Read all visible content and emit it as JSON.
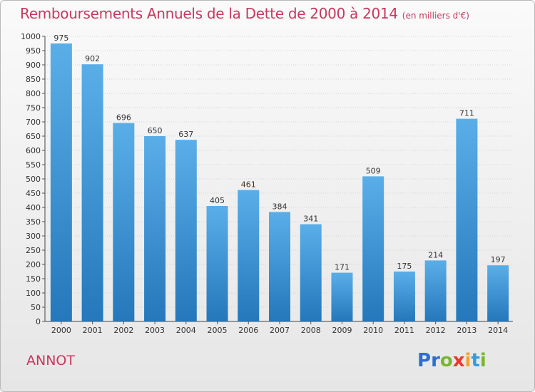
{
  "title": "Remboursements Annuels de la Dette de 2000 à 2014",
  "subtitle": "(en milliers d'€)",
  "commune": "ANNOT",
  "logo": {
    "letters": [
      "P",
      "r",
      "o",
      "x",
      "i",
      "t",
      "i"
    ],
    "colors": [
      "#2d6fd1",
      "#2d6fd1",
      "#7ab52f",
      "#e8392f",
      "#f3a325",
      "#3a9ad9",
      "#7ab52f"
    ]
  },
  "colors": {
    "bar_top": "#5aaee8",
    "bar_bottom": "#2478bb",
    "title": "#c8385f"
  },
  "chart_data": {
    "type": "bar",
    "categories": [
      "2000",
      "2001",
      "2002",
      "2003",
      "2004",
      "2005",
      "2006",
      "2007",
      "2008",
      "2009",
      "2010",
      "2011",
      "2012",
      "2013",
      "2014"
    ],
    "values": [
      975,
      902,
      696,
      650,
      637,
      405,
      461,
      384,
      341,
      171,
      509,
      175,
      214,
      711,
      197
    ],
    "yticks": [
      0,
      50,
      100,
      150,
      200,
      250,
      300,
      350,
      400,
      450,
      500,
      550,
      600,
      650,
      700,
      750,
      800,
      850,
      900,
      950,
      1000
    ],
    "ylim": [
      0,
      1000
    ],
    "grid": true,
    "legend": "none"
  }
}
